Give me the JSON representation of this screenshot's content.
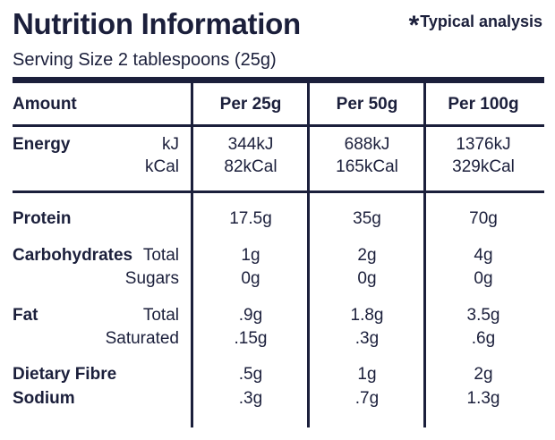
{
  "title": "Nutrition Information",
  "typical": {
    "mark": "*",
    "text": "Typical analysis"
  },
  "serving": "Serving Size  2 tablespoons (25g)",
  "header": {
    "amount": "Amount",
    "cols": [
      "Per 25g",
      "Per 50g",
      "Per 100g"
    ]
  },
  "energy": {
    "label": "Energy",
    "kj_unit": "kJ",
    "kcal_unit": "kCal",
    "kj": [
      "344kJ",
      "688kJ",
      "1376kJ"
    ],
    "kcal": [
      "82kCal",
      "165kCal",
      "329kCal"
    ]
  },
  "protein": {
    "label": "Protein",
    "values": [
      "17.5g",
      "35g",
      "70g"
    ]
  },
  "carbs": {
    "label": "Carbohydrates",
    "total_label": "Total",
    "sugars_label": "Sugars",
    "total": [
      "1g",
      "2g",
      "4g"
    ],
    "sugars": [
      "0g",
      "0g",
      "0g"
    ]
  },
  "fat": {
    "label": "Fat",
    "total_label": "Total",
    "saturated_label": "Saturated",
    "total": [
      ".9g",
      "1.8g",
      "3.5g"
    ],
    "saturated": [
      ".15g",
      ".3g",
      ".6g"
    ]
  },
  "fibre": {
    "label": "Dietary Fibre",
    "values": [
      ".5g",
      "1g",
      "2g"
    ]
  },
  "sodium": {
    "label": "Sodium",
    "values": [
      ".3g",
      ".7g",
      "1.3g"
    ]
  },
  "colors": {
    "ink": "#1b1f3b",
    "background": "#ffffff"
  }
}
